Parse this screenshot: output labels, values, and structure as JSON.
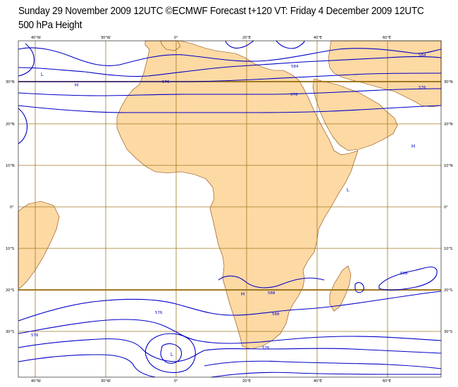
{
  "header": {
    "line1": "Sunday 29 November 2009 12UTC ©ECMWF Forecast t+120 VT: Friday 4 December 2009 12UTC",
    "line2": "500 hPa Height"
  },
  "ticks": {
    "top": [
      "40°W",
      "30°W",
      "0°",
      "20°E",
      "40°E",
      "60°E"
    ],
    "bottom": [
      "40°W",
      "30°W",
      "0°",
      "20°E",
      "40°E",
      "60°E"
    ],
    "left": [
      "30°N",
      "20°N",
      "10°N",
      "0°",
      "10°S",
      "20°S",
      "30°S"
    ],
    "right": [
      "30°N",
      "20°N",
      "10°N",
      "0°",
      "10°S",
      "20°S",
      "30°S"
    ]
  },
  "pressure_centers": [
    "L",
    "H",
    "H",
    "L",
    "H",
    "L"
  ],
  "contour_labels": [
    "584",
    "576",
    "576",
    "576",
    "588",
    "588",
    "588",
    "576",
    "576",
    "576",
    "584"
  ],
  "colors": {
    "land": "#fdd9a4",
    "coast": "#8b4500",
    "grid": "#a07820",
    "contour": "#0000c8"
  }
}
